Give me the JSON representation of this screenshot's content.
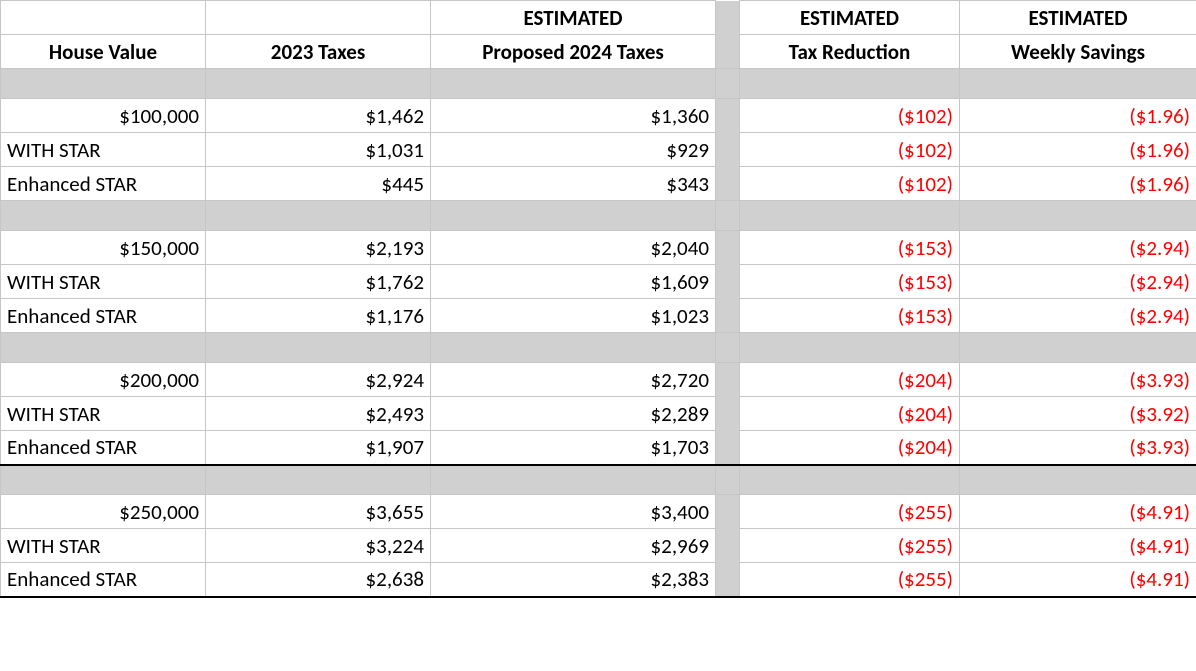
{
  "headers": {
    "row1": {
      "c3": "ESTIMATED",
      "c4": "ESTIMATED",
      "c5": "ESTIMATED"
    },
    "row2": {
      "c1": "House Value",
      "c2": "2023 Taxes",
      "c3": "Proposed 2024 Taxes",
      "c4": "Tax Reduction",
      "c5": "Weekly Savings"
    }
  },
  "groups": [
    {
      "rows": [
        {
          "label": "$100,000",
          "label_align": "right",
          "taxes2023": "$1,462",
          "taxes2024": "$1,360",
          "reduction": "($102)",
          "weekly": "($1.96)"
        },
        {
          "label": "WITH STAR",
          "label_align": "left",
          "taxes2023": "$1,031",
          "taxes2024": "$929",
          "reduction": "($102)",
          "weekly": "($1.96)"
        },
        {
          "label": "Enhanced STAR",
          "label_align": "left",
          "taxes2023": "$445",
          "taxes2024": "$343",
          "reduction": "($102)",
          "weekly": "($1.96)"
        }
      ]
    },
    {
      "rows": [
        {
          "label": "$150,000",
          "label_align": "right",
          "taxes2023": "$2,193",
          "taxes2024": "$2,040",
          "reduction": "($153)",
          "weekly": "($2.94)"
        },
        {
          "label": "WITH STAR",
          "label_align": "left",
          "taxes2023": "$1,762",
          "taxes2024": "$1,609",
          "reduction": "($153)",
          "weekly": "($2.94)"
        },
        {
          "label": "Enhanced STAR",
          "label_align": "left",
          "taxes2023": "$1,176",
          "taxes2024": "$1,023",
          "reduction": "($153)",
          "weekly": "($2.94)"
        }
      ]
    },
    {
      "rows": [
        {
          "label": "$200,000",
          "label_align": "right",
          "taxes2023": "$2,924",
          "taxes2024": "$2,720",
          "reduction": "($204)",
          "weekly": "($3.93)"
        },
        {
          "label": "WITH STAR",
          "label_align": "left",
          "taxes2023": "$2,493",
          "taxes2024": "$2,289",
          "reduction": "($204)",
          "weekly": "($3.92)"
        },
        {
          "label": "Enhanced STAR",
          "label_align": "left",
          "taxes2023": "$1,907",
          "taxes2024": "$1,703",
          "reduction": "($204)",
          "weekly": "($3.93)"
        }
      ]
    },
    {
      "thick_top": true,
      "rows": [
        {
          "label": "$250,000",
          "label_align": "right",
          "taxes2023": "$3,655",
          "taxes2024": "$3,400",
          "reduction": "($255)",
          "weekly": "($4.91)"
        },
        {
          "label": "WITH STAR",
          "label_align": "left",
          "taxes2023": "$3,224",
          "taxes2024": "$2,969",
          "reduction": "($255)",
          "weekly": "($4.91)"
        },
        {
          "label": "Enhanced STAR",
          "label_align": "left",
          "taxes2023": "$2,638",
          "taxes2024": "$2,383",
          "reduction": "($255)",
          "weekly": "($4.91)"
        }
      ]
    }
  ]
}
